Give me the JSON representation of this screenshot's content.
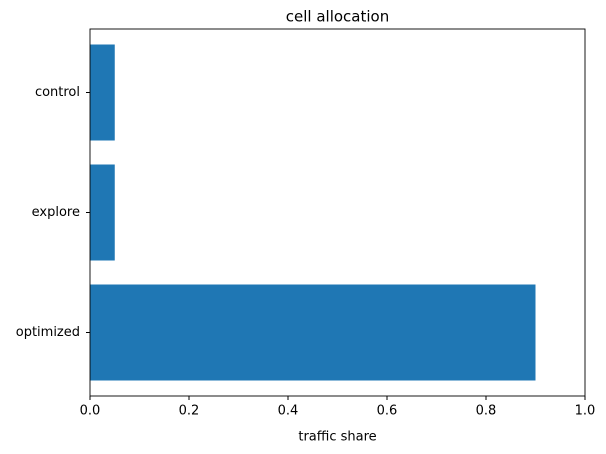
{
  "chart_data": {
    "type": "barh",
    "title": "cell allocation",
    "xlabel": "traffic share",
    "categories": [
      "control",
      "explore",
      "optimized"
    ],
    "values": [
      0.05,
      0.05,
      0.9
    ],
    "color": "#1f77b4",
    "xlim": [
      0,
      1
    ],
    "xticks": [
      {
        "value": 0,
        "label": "0.0"
      },
      {
        "value": 0.2,
        "label": "0.2"
      },
      {
        "value": 0.4,
        "label": "0.4"
      },
      {
        "value": 0.6,
        "label": "0.6"
      },
      {
        "value": 0.8,
        "label": "0.8"
      },
      {
        "value": 1,
        "label": "1.0"
      }
    ],
    "grid": false
  }
}
